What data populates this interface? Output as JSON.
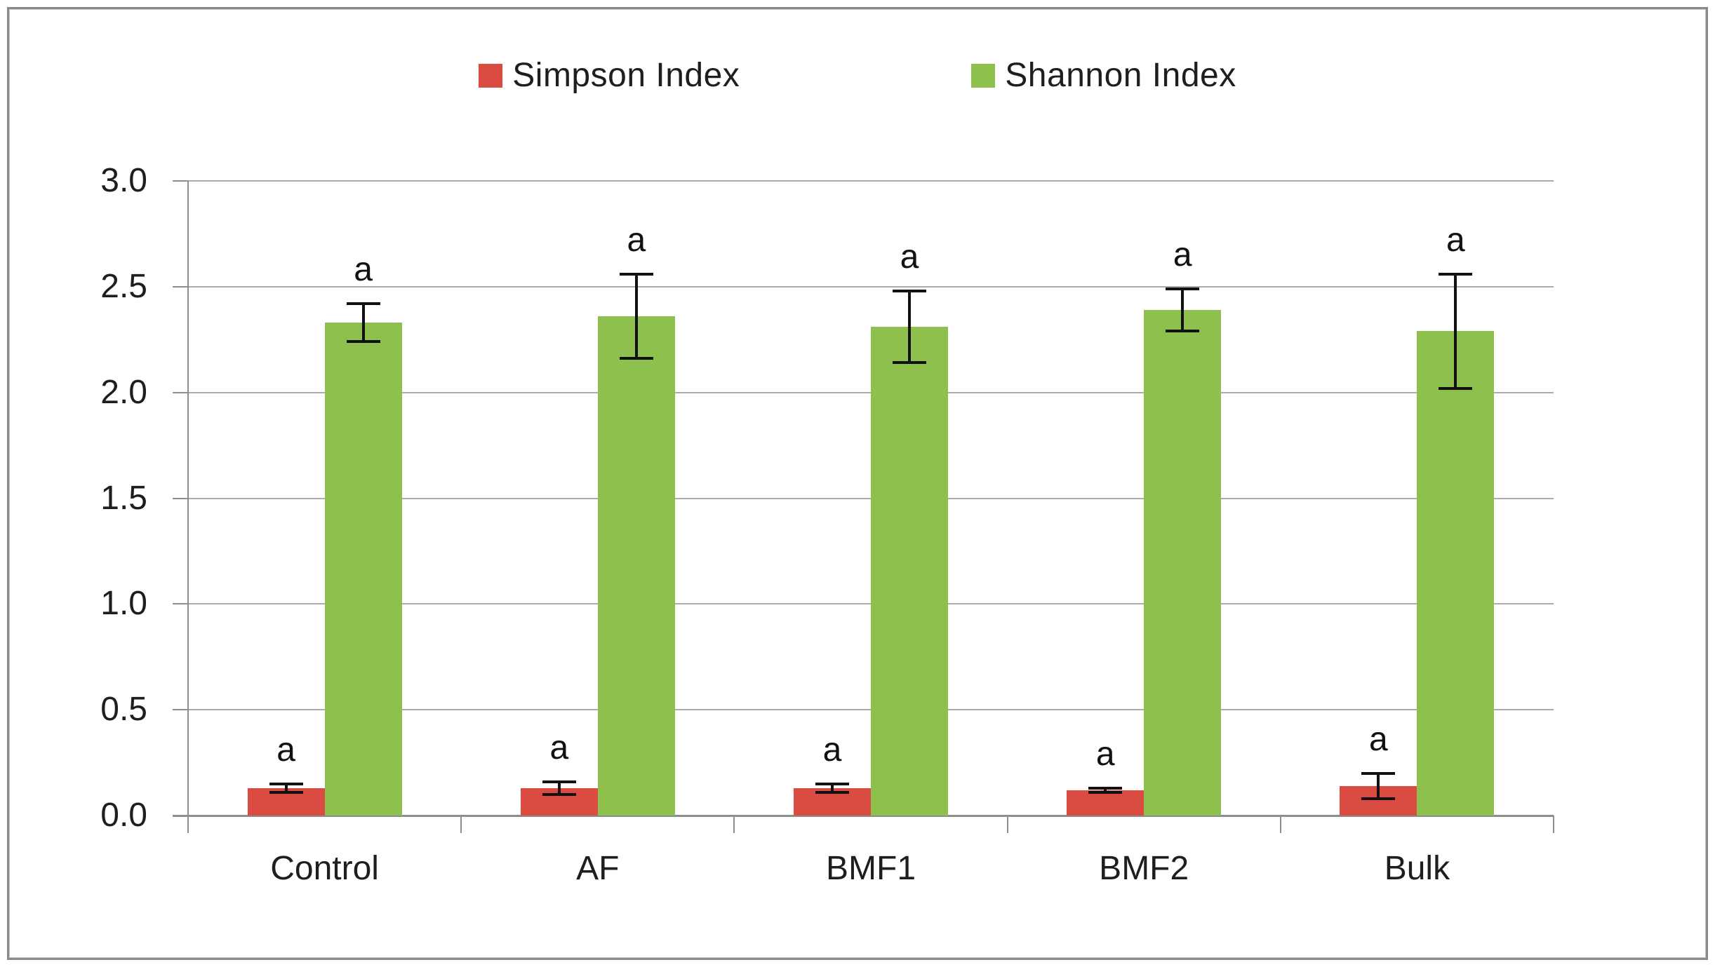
{
  "chart_data": {
    "type": "bar",
    "title": "",
    "xlabel": "",
    "ylabel": "",
    "categories": [
      "Control",
      "AF",
      "BMF1",
      "BMF2",
      "Bulk"
    ],
    "series": [
      {
        "name": "Simpson Index",
        "color": "#da4b42",
        "values": [
          0.13,
          0.13,
          0.13,
          0.12,
          0.14
        ],
        "errors": [
          0.02,
          0.03,
          0.02,
          0.01,
          0.06
        ],
        "bar_letters": [
          "a",
          "a",
          "a",
          "a",
          "a"
        ]
      },
      {
        "name": "Shannon Index",
        "color": "#8dc04d",
        "values": [
          2.33,
          2.36,
          2.31,
          2.39,
          2.29
        ],
        "errors": [
          0.09,
          0.2,
          0.17,
          0.1,
          0.27
        ],
        "bar_letters": [
          "a",
          "a",
          "a",
          "a",
          "a"
        ]
      }
    ],
    "ylim": [
      0.0,
      3.0
    ],
    "ytick_step": 0.5,
    "yticks": [
      "3.0",
      "2.5",
      "2.0",
      "1.5",
      "1.0",
      "0.5",
      "0.0"
    ],
    "grid": true,
    "legend_position": "top",
    "error_bar_color": "#111111"
  },
  "colors": {
    "background": "#ffffff",
    "frame_border": "#8a8a8a",
    "gridline": "#ababab",
    "axis": "#8e8e8e",
    "text": "#1e1e1e"
  }
}
